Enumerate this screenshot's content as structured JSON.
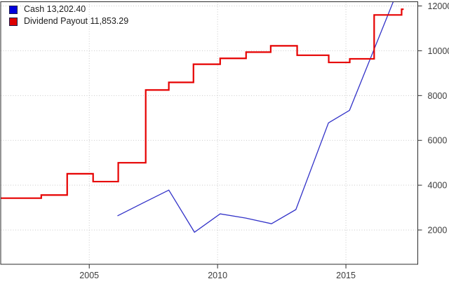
{
  "legend": {
    "items": [
      {
        "label": "Cash 13,202.40",
        "color": "#0000dd"
      },
      {
        "label": "Dividend Payout 11,853.29",
        "color": "#dd0000"
      }
    ]
  },
  "chart_data": {
    "type": "line",
    "title": "",
    "xlabel": "",
    "ylabel": "",
    "grid": "dotted",
    "legend_position": "top-left",
    "x_axis": {
      "range": [
        2001.55,
        2017.8
      ],
      "ticks": [
        2005,
        2010,
        2015
      ],
      "tick_labels": [
        "2005",
        "2010",
        "2015"
      ]
    },
    "y_axis": {
      "side": "right",
      "range": [
        469,
        12188
      ],
      "ticks": [
        2000,
        4000,
        6000,
        8000,
        10000,
        12000
      ],
      "tick_labels": [
        "2000",
        "4000",
        "6000",
        "8000",
        "10000",
        "12000"
      ]
    },
    "series": [
      {
        "name": "Cash",
        "final_value_label": "13,202.40",
        "color": "#3232c8",
        "line_width": 1.3,
        "draw_style": "line",
        "points": [
          [
            2006.1,
            2630
          ],
          [
            2007.1,
            3210
          ],
          [
            2008.1,
            3780
          ],
          [
            2009.1,
            1900
          ],
          [
            2010.1,
            2720
          ],
          [
            2011.1,
            2530
          ],
          [
            2012.1,
            2280
          ],
          [
            2013.05,
            2910
          ],
          [
            2014.32,
            6780
          ],
          [
            2015.14,
            7340
          ],
          [
            2017.2,
            13202.4
          ]
        ]
      },
      {
        "name": "Dividend Payout",
        "final_value_label": "11,853.29",
        "color": "#e60000",
        "line_width": 2.2,
        "draw_style": "step-after",
        "points": [
          [
            2001.55,
            3420
          ],
          [
            2003.13,
            3560
          ],
          [
            2004.14,
            4510
          ],
          [
            2005.15,
            4160
          ],
          [
            2006.13,
            5000
          ],
          [
            2007.2,
            8250
          ],
          [
            2008.1,
            8590
          ],
          [
            2009.06,
            9400
          ],
          [
            2010.1,
            9660
          ],
          [
            2011.11,
            9940
          ],
          [
            2012.07,
            10220
          ],
          [
            2013.1,
            9800
          ],
          [
            2014.33,
            9480
          ],
          [
            2015.15,
            9640
          ],
          [
            2016.1,
            11600
          ],
          [
            2017.17,
            11853.29
          ],
          [
            2017.25,
            11853.29
          ]
        ]
      }
    ]
  }
}
